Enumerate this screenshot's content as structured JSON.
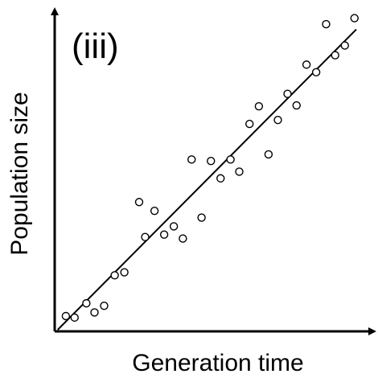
{
  "chart_data": {
    "type": "scatter",
    "panel_label": "(iii)",
    "xlabel": "Generation time",
    "ylabel": "Population size",
    "xlim": [
      0,
      10
    ],
    "ylim": [
      0,
      10
    ],
    "grid": false,
    "ticks": false,
    "marker": "open-circle",
    "colors": {
      "axis": "#000000",
      "points": "#000000",
      "fit_line": "#000000"
    },
    "points": [
      {
        "x": 0.37,
        "y": 0.45
      },
      {
        "x": 0.66,
        "y": 0.4
      },
      {
        "x": 1.05,
        "y": 0.87
      },
      {
        "x": 1.32,
        "y": 0.57
      },
      {
        "x": 1.64,
        "y": 0.79
      },
      {
        "x": 1.99,
        "y": 1.79
      },
      {
        "x": 2.31,
        "y": 1.89
      },
      {
        "x": 2.8,
        "y": 4.2
      },
      {
        "x": 3.0,
        "y": 3.05
      },
      {
        "x": 3.31,
        "y": 3.91
      },
      {
        "x": 3.63,
        "y": 3.13
      },
      {
        "x": 3.95,
        "y": 3.4
      },
      {
        "x": 4.25,
        "y": 3.0
      },
      {
        "x": 4.54,
        "y": 5.6
      },
      {
        "x": 4.87,
        "y": 3.69
      },
      {
        "x": 5.18,
        "y": 5.55
      },
      {
        "x": 5.5,
        "y": 4.98
      },
      {
        "x": 5.83,
        "y": 5.6
      },
      {
        "x": 6.12,
        "y": 5.2
      },
      {
        "x": 6.46,
        "y": 6.77
      },
      {
        "x": 6.77,
        "y": 7.35
      },
      {
        "x": 7.09,
        "y": 5.77
      },
      {
        "x": 7.4,
        "y": 6.9
      },
      {
        "x": 7.72,
        "y": 7.76
      },
      {
        "x": 8.02,
        "y": 7.38
      },
      {
        "x": 8.35,
        "y": 8.72
      },
      {
        "x": 8.67,
        "y": 8.47
      },
      {
        "x": 9.0,
        "y": 10.05
      },
      {
        "x": 9.3,
        "y": 9.03
      },
      {
        "x": 9.62,
        "y": 9.35
      },
      {
        "x": 9.94,
        "y": 10.25
      }
    ],
    "fit_line": {
      "x": [
        0.1,
        10.0
      ],
      "y": [
        0.0,
        9.88
      ]
    }
  }
}
